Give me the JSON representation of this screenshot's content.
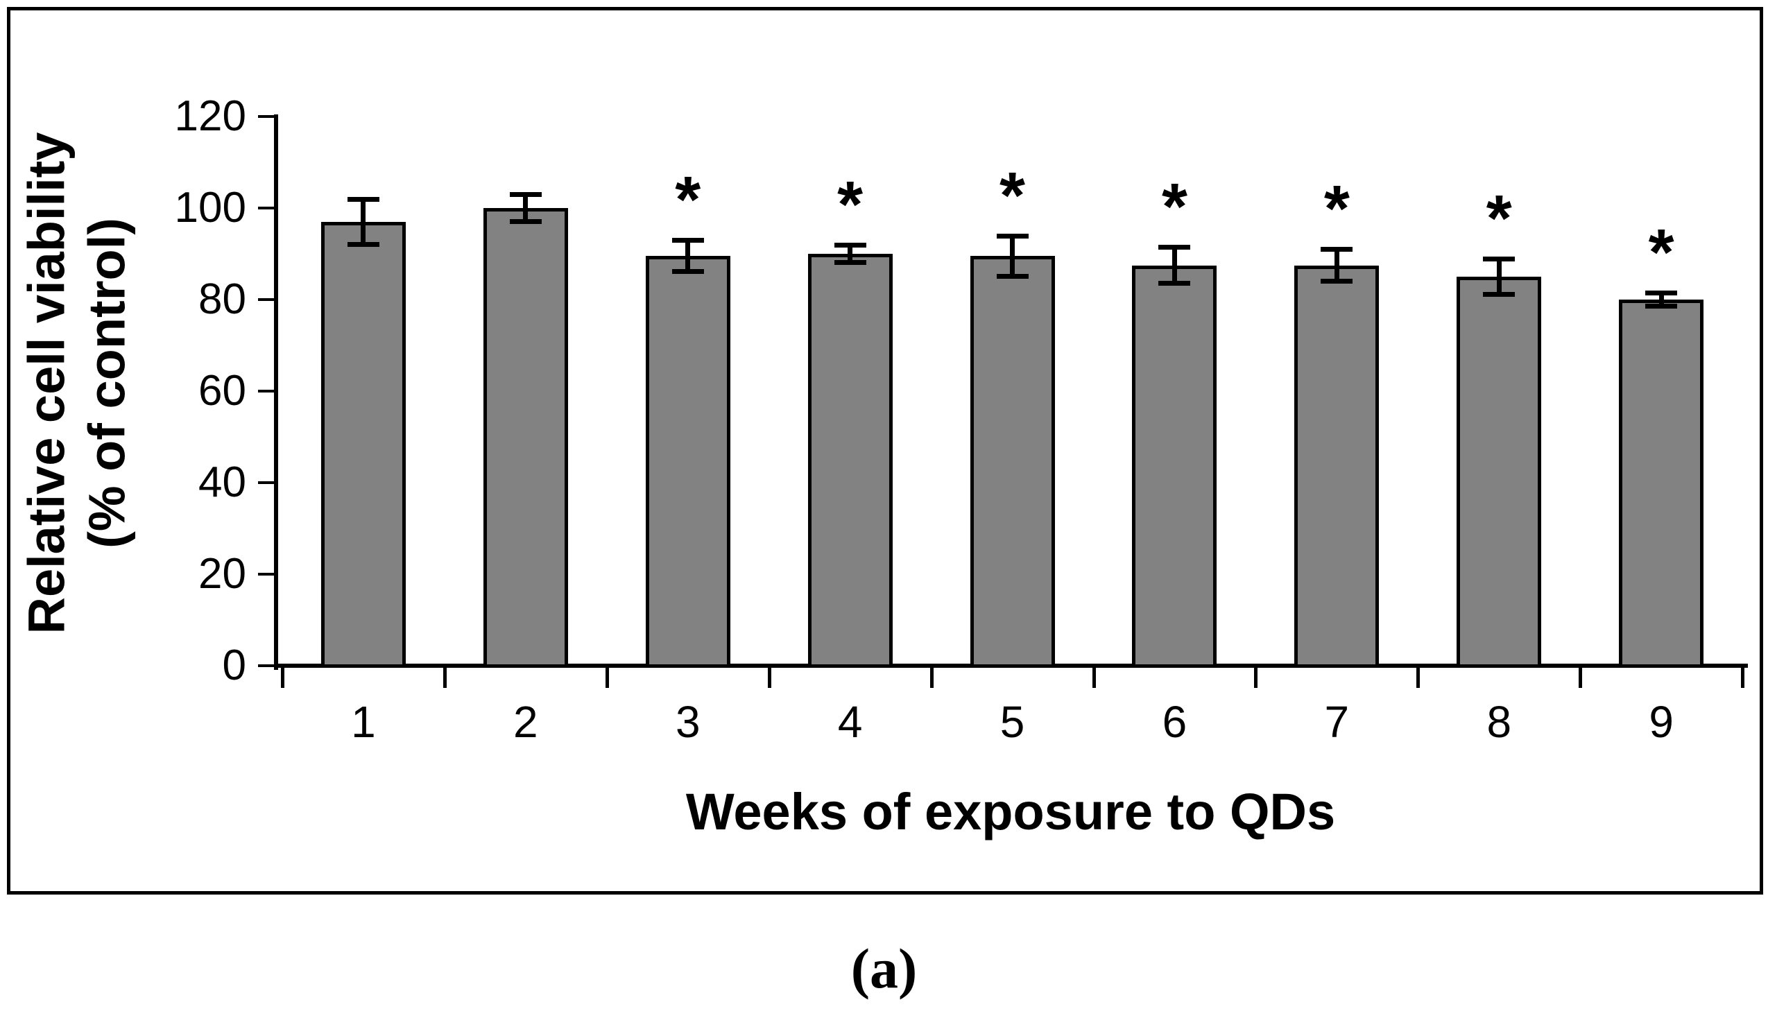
{
  "figure": {
    "caption": "(a)",
    "background_color": "#ffffff",
    "frame_color": "#000000"
  },
  "chart_data": {
    "type": "bar",
    "title": "",
    "categories": [
      "1",
      "2",
      "3",
      "4",
      "5",
      "6",
      "7",
      "8",
      "9"
    ],
    "values": [
      97,
      100,
      89.5,
      90,
      89.5,
      87.5,
      87.5,
      85,
      80
    ],
    "errors": [
      5,
      3,
      3.5,
      2,
      4.5,
      4,
      3.5,
      4,
      1.5
    ],
    "significant": [
      false,
      false,
      true,
      true,
      true,
      true,
      true,
      true,
      true
    ],
    "significance_marker": "*",
    "xlabel": "Weeks of exposure to QDs",
    "ylabel_line1": "Relative cell viability",
    "ylabel_line2": "(% of control)",
    "ylim": [
      0,
      120
    ],
    "yticks": [
      0,
      20,
      40,
      60,
      80,
      100,
      120
    ],
    "grid": false,
    "legend": "none",
    "bar_color": "#828282",
    "bar_border_color": "#000000",
    "error_bar_color": "#000000",
    "axis_color": "#000000",
    "text_color": "#000000"
  }
}
